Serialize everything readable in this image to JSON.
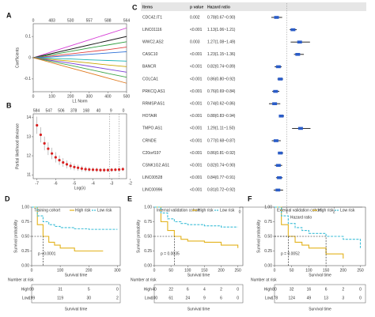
{
  "chart_data": [
    {
      "type": "line",
      "label": "A",
      "xlabel": "L1 Norm",
      "ylabel": "Coefficients",
      "top_ticks": [
        "0",
        "483",
        "530",
        "557",
        "588",
        "564"
      ],
      "x": [
        0,
        100,
        200,
        300,
        400,
        500
      ],
      "xlim": [
        0,
        500
      ],
      "xticks": [
        0,
        100,
        200,
        300,
        400,
        500
      ],
      "ylim": [
        -0.16,
        0.16
      ],
      "yticks": [
        -0.1,
        0,
        0.1
      ],
      "series": [
        {
          "color": "#d63fd6",
          "values": [
            0,
            0.028,
            0.056,
            0.084,
            0.112,
            0.14
          ]
        },
        {
          "color": "#1a1a1a",
          "values": [
            0,
            0.02,
            0.04,
            0.06,
            0.08,
            0.1
          ]
        },
        {
          "color": "#2e9e3e",
          "values": [
            0,
            0.014,
            0.03,
            0.046,
            0.06,
            0.075
          ]
        },
        {
          "color": "#e04040",
          "values": [
            0,
            0.008,
            0.018,
            0.028,
            0.038,
            0.05
          ]
        },
        {
          "color": "#2b6fd6",
          "values": [
            0,
            0.004,
            0.01,
            0.016,
            0.022,
            0.028
          ]
        },
        {
          "color": "#18b4b4",
          "values": [
            0,
            -0.003,
            -0.006,
            -0.01,
            -0.013,
            -0.016
          ]
        },
        {
          "color": "#c9a400",
          "values": [
            0,
            -0.008,
            -0.016,
            -0.025,
            -0.034,
            -0.042
          ]
        },
        {
          "color": "#7a3fd6",
          "values": [
            0,
            -0.013,
            -0.026,
            -0.04,
            -0.054,
            -0.068
          ]
        },
        {
          "color": "#3fa64a",
          "values": [
            0,
            -0.018,
            -0.036,
            -0.055,
            -0.074,
            -0.092
          ]
        },
        {
          "color": "#e07a1f",
          "values": [
            0,
            -0.024,
            -0.048,
            -0.072,
            -0.096,
            -0.12
          ]
        }
      ]
    },
    {
      "type": "scatter",
      "label": "B",
      "xlabel": "Log(λ)",
      "ylabel": "Partial likelihood deviance",
      "top_ticks": [
        "584",
        "547",
        "506",
        "378",
        "168",
        "40",
        "9",
        "0"
      ],
      "x": [
        -7,
        -6.8,
        -6.6,
        -6.4,
        -6.2,
        -6.0,
        -5.8,
        -5.6,
        -5.4,
        -5.2,
        -5.0,
        -4.8,
        -4.6,
        -4.4,
        -4.2,
        -4.0,
        -3.8,
        -3.6,
        -3.4,
        -3.2,
        -3.0,
        -2.8,
        -2.6,
        -2.4
      ],
      "values": [
        13.6,
        13.1,
        12.65,
        12.37,
        12.12,
        11.92,
        11.77,
        11.65,
        11.55,
        11.47,
        11.41,
        11.37,
        11.33,
        11.3,
        11.28,
        11.27,
        11.26,
        11.25,
        11.25,
        11.25,
        11.26,
        11.27,
        11.28,
        11.3
      ],
      "errors": [
        0.45,
        0.4,
        0.36,
        0.33,
        0.3,
        0.27,
        0.25,
        0.23,
        0.21,
        0.19,
        0.17,
        0.16,
        0.15,
        0.14,
        0.13,
        0.12,
        0.12,
        0.11,
        0.11,
        0.1,
        0.1,
        0.1,
        0.1,
        0.1
      ],
      "color": "#d92020",
      "vlines": [
        -3.1,
        -2.6
      ],
      "xlim": [
        -7.2,
        -2.2
      ],
      "xticks": [
        -7,
        -6,
        -5,
        -4,
        -3,
        -2
      ],
      "ylim": [
        10.8,
        14.2
      ],
      "yticks": [
        11,
        12,
        13,
        14
      ]
    },
    {
      "type": "forest",
      "label": "C",
      "columns": [
        "Items",
        "p value",
        "Hazard ratio"
      ],
      "items": [
        "CDC42.IT1",
        "LINC01116",
        "WWC2.AS2",
        "CASC10",
        "BANCR",
        "COLCA1",
        "PRKCQ.AS1",
        "RRMSP.AS1",
        "HOTAIR",
        "TMPO.AS1",
        "CRNDE",
        "C20orf197",
        "CSNK1G2.AS1",
        "LINC00528",
        "LINC00996"
      ],
      "p_values": [
        "0.002",
        "<0.001",
        "0.003",
        "<0.001",
        "<0.001",
        "<0.001",
        "<0.001",
        "<0.001",
        "<0.001",
        "<0.001",
        "<0.001",
        "<0.001",
        "<0.001",
        "<0.001",
        "<0.001"
      ],
      "hr_labels": [
        "0.78(0.67~0.90)",
        "1.13(1.06~1.21)",
        "1.27(1.08~1.49)",
        "1.23(1.15~1.36)",
        "0.82(0.74~0.89)",
        "0.86(0.80~0.92)",
        "0.76(0.69~0.84)",
        "0.74(0.62~0.86)",
        "0.88(0.83~0.94)",
        "1.29(1.11~1.50)",
        "0.77(0.68~0.87)",
        "0.86(0.81~0.92)",
        "0.82(0.74~0.90)",
        "0.84(0.77~0.91)",
        "0.81(0.72~0.92)"
      ],
      "hr": [
        0.78,
        1.13,
        1.27,
        1.23,
        0.82,
        0.86,
        0.76,
        0.74,
        0.88,
        1.29,
        0.77,
        0.86,
        0.82,
        0.84,
        0.81
      ],
      "lower": [
        0.67,
        1.06,
        1.08,
        1.15,
        0.74,
        0.8,
        0.69,
        0.62,
        0.83,
        1.11,
        0.68,
        0.81,
        0.74,
        0.77,
        0.72
      ],
      "upper": [
        0.9,
        1.21,
        1.49,
        1.36,
        0.89,
        0.92,
        0.84,
        0.86,
        0.94,
        1.5,
        0.87,
        0.92,
        0.9,
        0.91,
        0.92
      ],
      "color": "#2a5cc8",
      "reference": 1,
      "xlim": [
        0,
        2.6
      ],
      "xticks": [
        0,
        1,
        2
      ],
      "xlabel": "Hazard ratio"
    },
    {
      "type": "km",
      "label": "D",
      "title": "Training cohort",
      "p_label": "p <0.0001",
      "ylabel": "Survival probability",
      "xlabel": "Survival time",
      "risk_title": "Number at risk",
      "strata": [
        "High",
        "Low"
      ],
      "x": [
        0,
        20,
        40,
        60,
        80,
        100,
        150,
        200,
        250,
        300
      ],
      "series": [
        {
          "name": "High risk",
          "color": "#e3b21c",
          "values": [
            1,
            0.7,
            0.5,
            0.4,
            0.35,
            0.3,
            0.25,
            0.25,
            0.25,
            null
          ],
          "at_risk": [
            99,
            31,
            5,
            0
          ]
        },
        {
          "name": "Low risk",
          "color": "#3fbfd8",
          "values": [
            1,
            0.85,
            0.75,
            0.7,
            0.67,
            0.65,
            0.63,
            0.62,
            0.62,
            0.62
          ],
          "at_risk": [
            199,
            119,
            30,
            2
          ]
        }
      ],
      "xlim": [
        0,
        310
      ],
      "xticks": [
        0,
        100,
        200,
        300
      ],
      "ylim": [
        0,
        1
      ],
      "yticks": [
        {
          "value": 0,
          "label": "0.00"
        },
        {
          "value": 0.25,
          "label": "0.25"
        },
        {
          "value": 0.5,
          "label": "0.50"
        },
        {
          "value": 0.75,
          "label": "0.75"
        },
        {
          "value": 1,
          "label": "1.00"
        }
      ]
    },
    {
      "type": "km",
      "label": "E",
      "title": "Internal validation cohort",
      "p_label": "p = 0.0035",
      "ylabel": "Survival probability",
      "xlabel": "Survival time",
      "risk_title": "Number at risk",
      "strata": [
        "High",
        "Low"
      ],
      "x": [
        0,
        20,
        40,
        60,
        80,
        100,
        150,
        200,
        250
      ],
      "series": [
        {
          "name": "High risk",
          "color": "#e3b21c",
          "values": [
            1,
            0.75,
            0.6,
            0.5,
            0.45,
            0.42,
            0.4,
            0.35,
            0.3
          ],
          "at_risk": [
            40,
            22,
            6,
            4,
            2,
            0
          ]
        },
        {
          "name": "Low risk",
          "color": "#3fbfd8",
          "values": [
            1,
            0.9,
            0.8,
            0.75,
            0.72,
            0.7,
            0.68,
            0.66,
            0.66
          ],
          "at_risk": [
            100,
            61,
            24,
            9,
            6,
            0
          ]
        }
      ],
      "xlim": [
        0,
        265
      ],
      "xticks": [
        0,
        50,
        100,
        150,
        200,
        250
      ],
      "ylim": [
        0,
        1
      ],
      "yticks": [
        {
          "value": 0,
          "label": "0.00"
        },
        {
          "value": 0.25,
          "label": "0.25"
        },
        {
          "value": 0.5,
          "label": "0.50"
        },
        {
          "value": 0.75,
          "label": "0.75"
        },
        {
          "value": 1,
          "label": "1.00"
        }
      ]
    },
    {
      "type": "km",
      "label": "F",
      "title": "External validation cohort",
      "p_label": "p = 0.0052",
      "ylabel": "Survival probability",
      "xlabel": "Survival time",
      "risk_title": "Number at risk",
      "strata": [
        "High",
        "Low"
      ],
      "x": [
        0,
        20,
        40,
        60,
        80,
        100,
        150,
        200,
        250
      ],
      "series": [
        {
          "name": "High risk",
          "color": "#e3b21c",
          "values": [
            1,
            0.7,
            0.5,
            0.4,
            0.35,
            0.3,
            0.2,
            0.12,
            null
          ],
          "at_risk": [
            80,
            32,
            16,
            6,
            2,
            0
          ]
        },
        {
          "name": "Low risk",
          "color": "#3fbfd8",
          "values": [
            1,
            0.85,
            0.72,
            0.65,
            0.6,
            0.55,
            0.5,
            0.45,
            0.3
          ],
          "at_risk": [
            178,
            124,
            49,
            13,
            3,
            0
          ]
        }
      ],
      "xlim": [
        0,
        265
      ],
      "xticks": [
        0,
        50,
        100,
        150,
        200,
        250
      ],
      "ylim": [
        0,
        1
      ],
      "yticks": [
        {
          "value": 0,
          "label": "0.00"
        },
        {
          "value": 0.25,
          "label": "0.25"
        },
        {
          "value": 0.5,
          "label": "0.50"
        },
        {
          "value": 0.75,
          "label": "0.75"
        },
        {
          "value": 1,
          "label": "1.00"
        }
      ]
    }
  ]
}
